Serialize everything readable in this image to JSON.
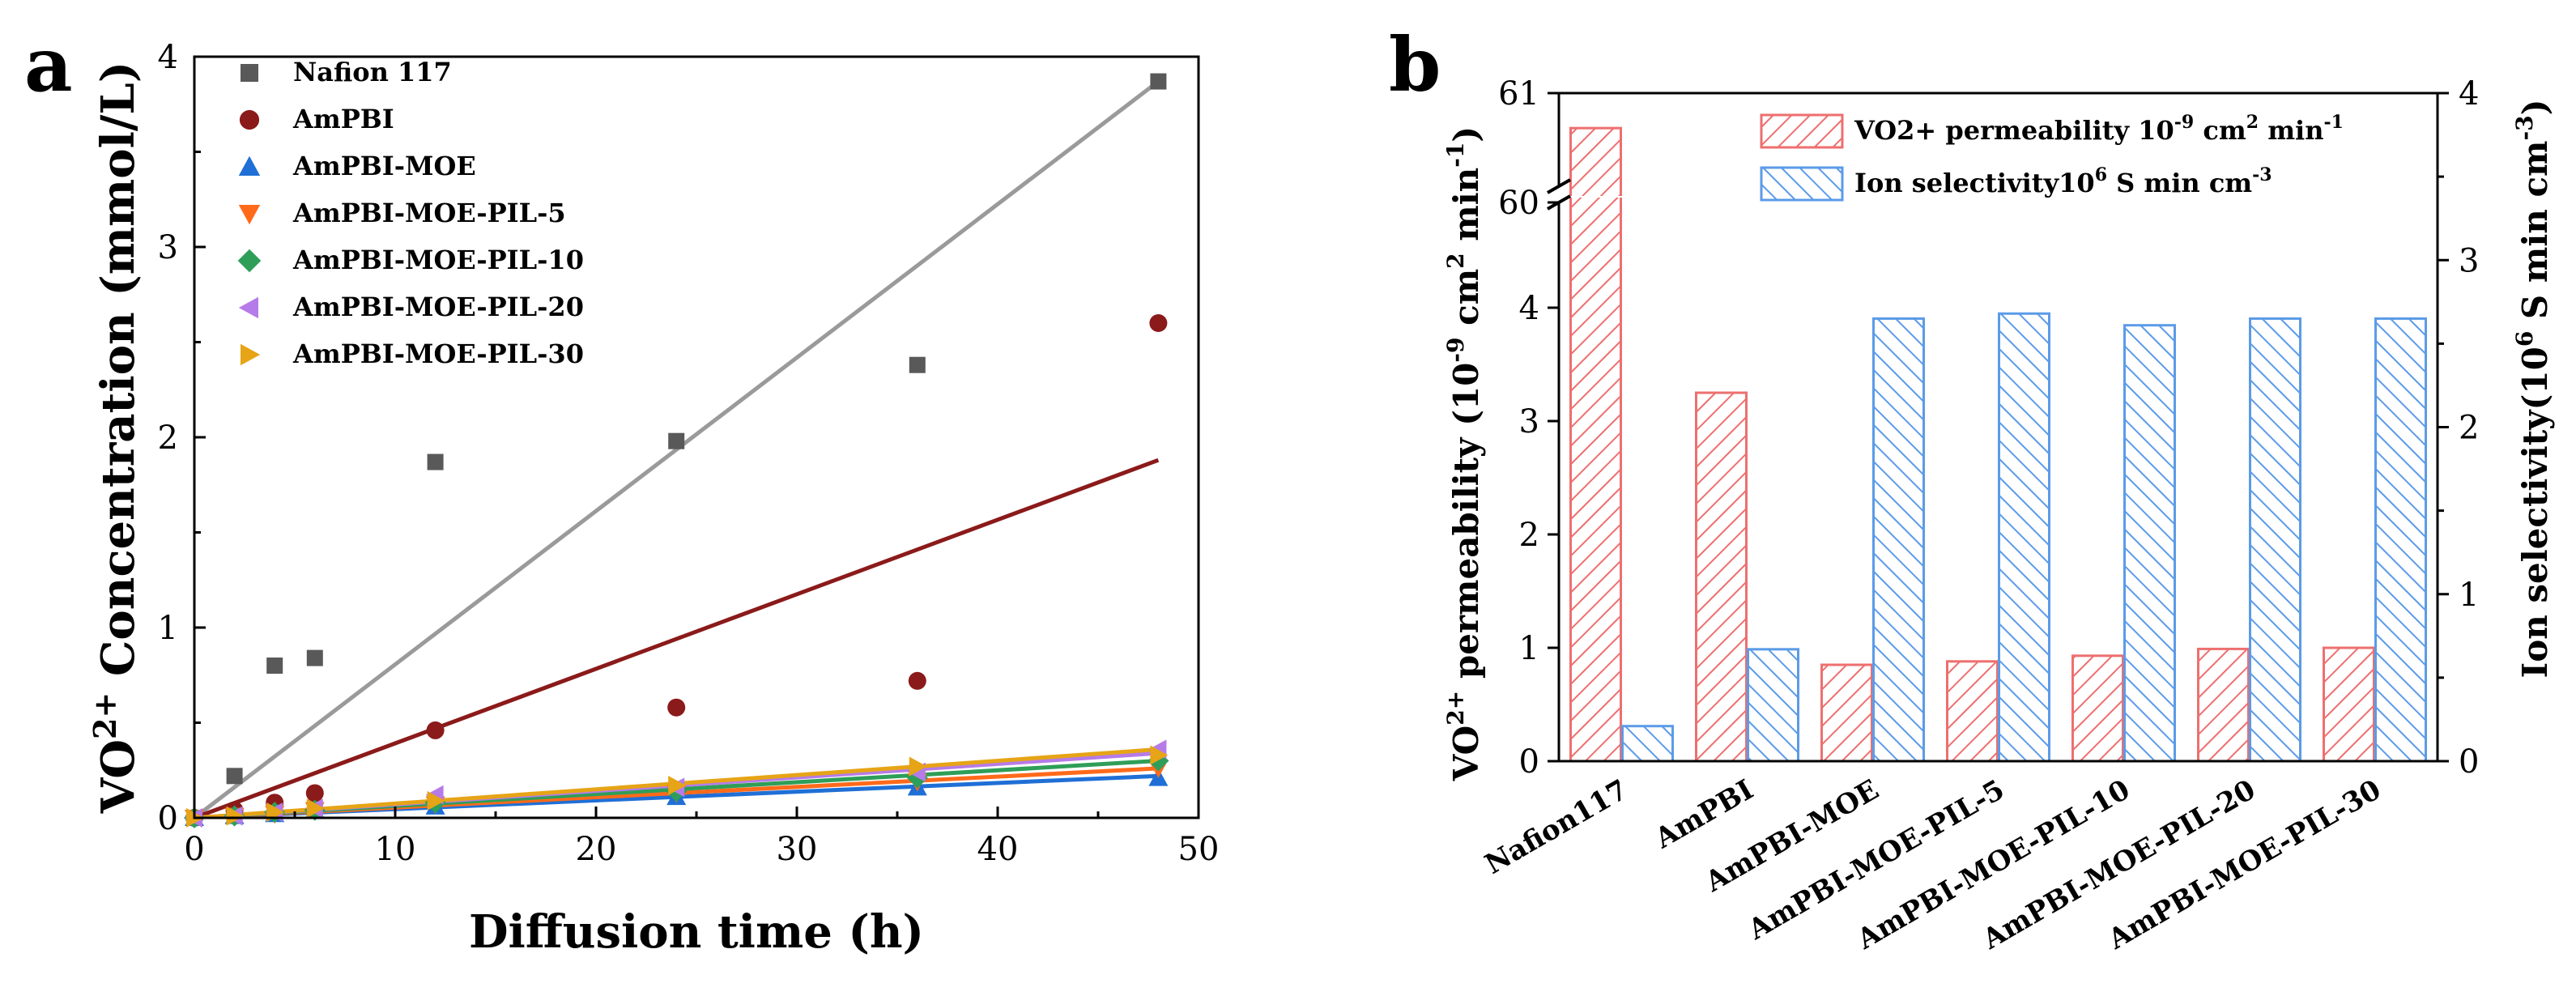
{
  "chart_data": [
    {
      "panel": "a",
      "type": "scatter",
      "title": "",
      "xlabel": "Diffusion time (h)",
      "ylabel_parts": {
        "pre": "VO",
        "sup": "2+",
        "post": " Concentration (mmol/L)"
      },
      "xlim": [
        0,
        50
      ],
      "ylim": [
        0,
        4
      ],
      "xticks": [
        "0",
        "10",
        "20",
        "30",
        "40",
        "50"
      ],
      "yticks": [
        "0",
        "1",
        "2",
        "3",
        "4"
      ],
      "legend_position": "top-left",
      "series": [
        {
          "name": "Nafion 117",
          "marker": "square",
          "color": "#595959",
          "line_color": "#9a9a9a",
          "x": [
            0,
            2,
            4,
            6,
            12,
            24,
            36,
            48
          ],
          "y": [
            0,
            0.22,
            0.8,
            0.84,
            1.87,
            1.98,
            2.38,
            3.87
          ],
          "fit_end": 3.87
        },
        {
          "name": "AmPBI",
          "marker": "circle",
          "color": "#8b1a1a",
          "line_color": "#8b1a1a",
          "x": [
            0,
            2,
            4,
            6,
            12,
            24,
            36,
            48
          ],
          "y": [
            0,
            0.04,
            0.08,
            0.13,
            0.46,
            0.58,
            0.72,
            2.6
          ],
          "fit_end": 1.88
        },
        {
          "name": "AmPBI-MOE",
          "marker": "triangle-up",
          "color": "#1f6fd6",
          "line_color": "#1f6fd6",
          "x": [
            0,
            2,
            4,
            6,
            12,
            24,
            36,
            48
          ],
          "y": [
            0,
            0.01,
            0.02,
            0.04,
            0.06,
            0.11,
            0.16,
            0.21
          ],
          "fit_end": 0.22
        },
        {
          "name": "AmPBI-MOE-PIL-5",
          "marker": "triangle-down",
          "color": "#ff6a1a",
          "line_color": "#ff6a1a",
          "x": [
            0,
            2,
            4,
            6,
            12,
            24,
            36,
            48
          ],
          "y": [
            0,
            0.01,
            0.02,
            0.04,
            0.07,
            0.13,
            0.19,
            0.26
          ],
          "fit_end": 0.26
        },
        {
          "name": "AmPBI-MOE-PIL-10",
          "marker": "diamond",
          "color": "#2e9e58",
          "line_color": "#2e9e58",
          "x": [
            0,
            2,
            4,
            6,
            12,
            24,
            36,
            48
          ],
          "y": [
            0,
            0.01,
            0.03,
            0.04,
            0.08,
            0.14,
            0.21,
            0.3
          ],
          "fit_end": 0.3
        },
        {
          "name": "AmPBI-MOE-PIL-20",
          "marker": "triangle-left",
          "color": "#b57be8",
          "line_color": "#b57be8",
          "x": [
            0,
            2,
            4,
            6,
            12,
            24,
            36,
            48
          ],
          "y": [
            0,
            0.01,
            0.03,
            0.05,
            0.12,
            0.16,
            0.24,
            0.36
          ],
          "fit_end": 0.34
        },
        {
          "name": "AmPBI-MOE-PIL-30",
          "marker": "triangle-right",
          "color": "#e6a416",
          "line_color": "#e6a416",
          "x": [
            0,
            2,
            4,
            6,
            12,
            24,
            36,
            48
          ],
          "y": [
            0,
            0.01,
            0.03,
            0.05,
            0.09,
            0.17,
            0.27,
            0.33
          ],
          "fit_end": 0.36
        }
      ]
    },
    {
      "panel": "b",
      "type": "bar",
      "categories": [
        "Nafion117",
        "AmPBI",
        "AmPBI-MOE",
        "AmPBI-MOE-PIL-5",
        "AmPBI-MOE-PIL-10",
        "AmPBI-MOE-PIL-20",
        "AmPBI-MOE-PIL-30"
      ],
      "ylabel_left_parts": {
        "pre": "VO",
        "sup1": "2+",
        "mid": " permeability (10",
        "sup2": "-9",
        "mid2": " cm",
        "sup3": "2",
        "mid3": " min",
        "sup4": "-1",
        "post": ")"
      },
      "ylabel_right_parts": {
        "pre": "Ion selectivity(10",
        "sup1": "6",
        "mid": " S min cm",
        "sup2": "-3",
        "post": ")"
      },
      "ylim_left_lower": [
        0,
        4
      ],
      "ylim_left_upper": [
        60,
        61
      ],
      "yticks_left": [
        "0",
        "1",
        "2",
        "3",
        "4",
        "60",
        "61"
      ],
      "ylim_right": [
        0,
        4
      ],
      "yticks_right": [
        "0",
        "1",
        "2",
        "3",
        "4"
      ],
      "legend_position": "top-right",
      "series": [
        {
          "name_parts": {
            "pre": "VO2+ permeability 10",
            "sup1": "-9",
            "mid": " cm",
            "sup2": "2",
            "mid2": " min",
            "sup3": "-1"
          },
          "axis": "left",
          "color": "#ee6f6f",
          "values": [
            60.68,
            3.25,
            0.85,
            0.88,
            0.93,
            0.99,
            1.0
          ]
        },
        {
          "name_parts": {
            "pre": "Ion selectivity10",
            "sup1": "6",
            "mid": " S min cm",
            "sup2": "-3"
          },
          "axis": "right",
          "color": "#5b9be8",
          "values": [
            0.21,
            0.67,
            2.65,
            2.68,
            2.61,
            2.65,
            2.65
          ]
        }
      ]
    }
  ]
}
